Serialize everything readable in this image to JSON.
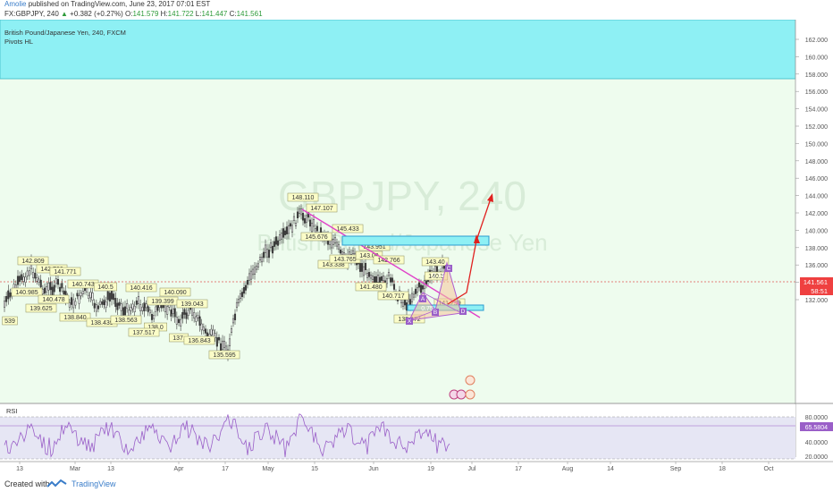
{
  "header": {
    "author": "Amolie",
    "published_text": "published on TradingView.com, June 23, 2017 07:01 EST",
    "symbol_line": "FX:GBPJPY, 240",
    "change": "+0.382 (+0.27%)",
    "ohlc": {
      "o_label": "O:",
      "o": "141.579",
      "h_label": "H:",
      "h": "141.722",
      "l_label": "L:",
      "l": "141.447",
      "c_label": "C:",
      "c": "141.561"
    }
  },
  "legend": {
    "title": "British Pound/Japanese Yen, 240, FXCM",
    "indicator": "Pivots HL"
  },
  "watermark": {
    "symbol": "GBPJPY, 240",
    "name": "British Pound/Japanese Yen"
  },
  "price_axis": {
    "labels": [
      "162.000",
      "160.000",
      "158.000",
      "156.000",
      "154.000",
      "152.000",
      "150.000",
      "148.000",
      "146.000",
      "144.000",
      "142.000",
      "140.000",
      "138.000",
      "136.000",
      "134.000",
      "132.000"
    ],
    "current_price": "141.561",
    "countdown": "58:51"
  },
  "rsi": {
    "label": "RSI",
    "axis_labels": [
      "80.0000",
      "40.0000",
      "20.0000"
    ],
    "current": "65.5804"
  },
  "time_axis": {
    "labels": [
      "13",
      "Mar",
      "13",
      "Apr",
      "17",
      "May",
      "15",
      "Jun",
      "19",
      "Jul",
      "17",
      "Aug",
      "14",
      "Sep",
      "18",
      "Oct"
    ]
  },
  "pivot_labels": [
    "142.809",
    "140.985",
    "142.766",
    "141.771",
    "140.478",
    "139.625",
    "140.743",
    "138.840",
    "140.5",
    "140.416",
    "138.439",
    "138.563",
    "140.090",
    "139.399",
    "139.043",
    "138.0",
    "137.517",
    "137.",
    "136.843",
    "135.595",
    "148.110",
    "147.107",
    "145.676",
    "145.433",
    "143.338",
    "143.765",
    "143.09",
    "143.951",
    "141.480",
    "142.766",
    "140.717",
    "138.372",
    "143.40",
    "140.5",
    "141.299",
    "539"
  ],
  "pattern_letters": [
    "X",
    "A",
    "B",
    "C",
    "D"
  ],
  "pattern_ratios": [
    "0.74",
    "0.75"
  ],
  "footer": {
    "created_with": "Created with",
    "brand": "TradingView"
  },
  "colors": {
    "bg": "#eefcee",
    "resistance_box": "#8ef0f4",
    "trendline": "#e040c8",
    "arrow": "#e0201f",
    "rsi_line": "#9a5fc8",
    "candle_up": "#3a3a3a",
    "label_bg": "#fbfdc8"
  }
}
